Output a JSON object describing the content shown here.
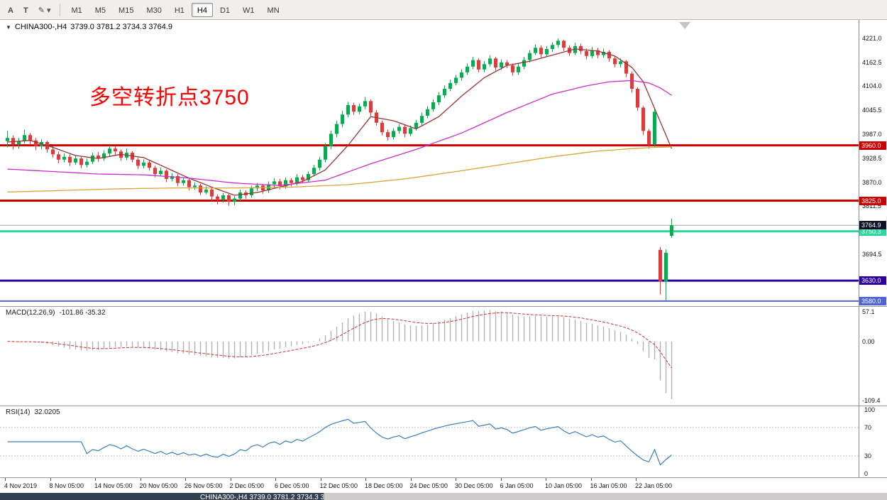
{
  "toolbar": {
    "tools": [
      {
        "name": "text-annotation-button",
        "label": "A"
      },
      {
        "name": "text-label-button",
        "label": "T"
      },
      {
        "name": "drawing-tools-button",
        "label": "✎",
        "caret": true
      }
    ],
    "timeframes": [
      {
        "label": "M1"
      },
      {
        "label": "M5"
      },
      {
        "label": "M15"
      },
      {
        "label": "M30"
      },
      {
        "label": "H1"
      },
      {
        "label": "H4",
        "active": true
      },
      {
        "label": "D1"
      },
      {
        "label": "W1"
      },
      {
        "label": "MN"
      }
    ]
  },
  "annotation": {
    "text": "多空转折点3750",
    "color": "#ff0000"
  },
  "bottom_bar": {
    "left_text": "CHINA300-,H4 3739.0 3781.2 3734.3 3764.9"
  },
  "chart_data": {
    "type": "candlestick",
    "symbol_text": "CHINA300-,H4",
    "ohlc_text": "3739.0 3781.2 3734.3 3764.9",
    "last_ohlc": {
      "open": 3739.0,
      "high": 3781.2,
      "low": 3734.3,
      "close": 3764.9
    },
    "colors": {
      "up": "#00b050",
      "down": "#e03a3a",
      "ma_fast": "#9a3333",
      "ma_mid": "#cc2ecc",
      "ma_slow": "#dba53a",
      "macd_bar": "#b2b2b2",
      "macd_signal": "#cc3333",
      "rsi_line": "#3c7ebf",
      "current_line": "#a6a6a6"
    },
    "y_axis": {
      "price_max": 4266,
      "price_min": 3566,
      "ticks": [
        4221.0,
        4162.5,
        4104.0,
        4045.5,
        3987.0,
        3928.5,
        3870.0,
        3811.5,
        3694.5
      ]
    },
    "levels": [
      {
        "price": 3960.0,
        "label": "3960.0",
        "color": "#cc0000",
        "width": 3
      },
      {
        "price": 3825.0,
        "label": "3825.0",
        "color": "#cc0000",
        "width": 3
      },
      {
        "price": 3750.3,
        "label": "3750.3",
        "color": "#2ed79b",
        "width": 3
      },
      {
        "price": 3630.0,
        "label": "3630.0",
        "color": "#2d00a0",
        "width": 3
      },
      {
        "price": 3580.0,
        "label": "3580.0",
        "color": "#4f63d2",
        "width": 2
      }
    ],
    "current_price": {
      "value": 3764.9,
      "label": "3764.9",
      "box_color": "#0d1026"
    },
    "x_labels": [
      "4 Nov 2019",
      "8 Nov 05:00",
      "14 Nov 05:00",
      "20 Nov 05:00",
      "26 Nov 05:00",
      "2 Dec 05:00",
      "6 Dec 05:00",
      "12 Dec 05:00",
      "18 Dec 05:00",
      "24 Dec 05:00",
      "30 Dec 05:00",
      "6 Jan 05:00",
      "10 Jan 05:00",
      "16 Jan 05:00",
      "22 Jan 05:00"
    ],
    "candles": [
      [
        3970,
        3995,
        3955,
        3978
      ],
      [
        3978,
        3984,
        3950,
        3962
      ],
      [
        3962,
        3978,
        3952,
        3970
      ],
      [
        3970,
        3998,
        3964,
        3985
      ],
      [
        3985,
        3990,
        3962,
        3972
      ],
      [
        3972,
        3978,
        3948,
        3958
      ],
      [
        3958,
        3975,
        3950,
        3968
      ],
      [
        3968,
        3972,
        3942,
        3950
      ],
      [
        3950,
        3958,
        3930,
        3938
      ],
      [
        3938,
        3945,
        3916,
        3925
      ],
      [
        3925,
        3940,
        3918,
        3932
      ],
      [
        3932,
        3938,
        3910,
        3918
      ],
      [
        3918,
        3936,
        3912,
        3928
      ],
      [
        3928,
        3932,
        3904,
        3912
      ],
      [
        3912,
        3928,
        3906,
        3920
      ],
      [
        3920,
        3942,
        3914,
        3935
      ],
      [
        3935,
        3944,
        3920,
        3928
      ],
      [
        3928,
        3948,
        3922,
        3940
      ],
      [
        3940,
        3960,
        3934,
        3952
      ],
      [
        3952,
        3958,
        3936,
        3945
      ],
      [
        3945,
        3950,
        3922,
        3930
      ],
      [
        3930,
        3952,
        3924,
        3942
      ],
      [
        3942,
        3946,
        3918,
        3925
      ],
      [
        3925,
        3930,
        3902,
        3910
      ],
      [
        3910,
        3926,
        3904,
        3918
      ],
      [
        3918,
        3922,
        3898,
        3905
      ],
      [
        3905,
        3910,
        3882,
        3890
      ],
      [
        3890,
        3906,
        3884,
        3898
      ],
      [
        3898,
        3902,
        3870,
        3878
      ],
      [
        3878,
        3892,
        3872,
        3885
      ],
      [
        3885,
        3890,
        3860,
        3868
      ],
      [
        3868,
        3882,
        3862,
        3875
      ],
      [
        3875,
        3880,
        3850,
        3858
      ],
      [
        3858,
        3870,
        3852,
        3862
      ],
      [
        3862,
        3866,
        3838,
        3845
      ],
      [
        3845,
        3860,
        3840,
        3852
      ],
      [
        3852,
        3856,
        3826,
        3835
      ],
      [
        3835,
        3840,
        3816,
        3828
      ],
      [
        3828,
        3844,
        3820,
        3838
      ],
      [
        3838,
        3842,
        3812,
        3822
      ],
      [
        3822,
        3836,
        3814,
        3830
      ],
      [
        3830,
        3852,
        3824,
        3845
      ],
      [
        3845,
        3850,
        3830,
        3838
      ],
      [
        3838,
        3862,
        3832,
        3855
      ],
      [
        3855,
        3868,
        3848,
        3862
      ],
      [
        3862,
        3866,
        3842,
        3850
      ],
      [
        3850,
        3872,
        3844,
        3865
      ],
      [
        3865,
        3880,
        3858,
        3872
      ],
      [
        3872,
        3878,
        3852,
        3860
      ],
      [
        3860,
        3882,
        3854,
        3875
      ],
      [
        3875,
        3880,
        3860,
        3868
      ],
      [
        3868,
        3890,
        3862,
        3882
      ],
      [
        3882,
        3888,
        3868,
        3875
      ],
      [
        3875,
        3896,
        3870,
        3890
      ],
      [
        3890,
        3912,
        3884,
        3905
      ],
      [
        3905,
        3932,
        3898,
        3925
      ],
      [
        3925,
        3965,
        3918,
        3958
      ],
      [
        3958,
        3996,
        3950,
        3988
      ],
      [
        3988,
        4020,
        3980,
        4012
      ],
      [
        4012,
        4044,
        4004,
        4035
      ],
      [
        4035,
        4066,
        4028,
        4058
      ],
      [
        4058,
        4064,
        4034,
        4042
      ],
      [
        4042,
        4062,
        4036,
        4055
      ],
      [
        4055,
        4078,
        4048,
        4068
      ],
      [
        4068,
        4072,
        4032,
        4040
      ],
      [
        4040,
        4046,
        4008,
        4015
      ],
      [
        4015,
        4020,
        3984,
        3992
      ],
      [
        3992,
        3998,
        3972,
        3980
      ],
      [
        3980,
        4002,
        3974,
        3995
      ],
      [
        3995,
        4012,
        3988,
        4005
      ],
      [
        4005,
        4010,
        3980,
        3988
      ],
      [
        3988,
        4008,
        3982,
        4002
      ],
      [
        4002,
        4022,
        3996,
        4015
      ],
      [
        4015,
        4040,
        4008,
        4032
      ],
      [
        4032,
        4056,
        4026,
        4048
      ],
      [
        4048,
        4072,
        4042,
        4065
      ],
      [
        4065,
        4090,
        4058,
        4082
      ],
      [
        4082,
        4106,
        4076,
        4098
      ],
      [
        4098,
        4120,
        4092,
        4112
      ],
      [
        4112,
        4132,
        4106,
        4125
      ],
      [
        4125,
        4146,
        4118,
        4138
      ],
      [
        4138,
        4160,
        4132,
        4152
      ],
      [
        4152,
        4176,
        4146,
        4168
      ],
      [
        4168,
        4172,
        4138,
        4145
      ],
      [
        4145,
        4166,
        4138,
        4158
      ],
      [
        4158,
        4180,
        4152,
        4172
      ],
      [
        4172,
        4176,
        4142,
        4150
      ],
      [
        4150,
        4170,
        4144,
        4162
      ],
      [
        4162,
        4168,
        4148,
        4155
      ],
      [
        4155,
        4160,
        4130,
        4138
      ],
      [
        4138,
        4160,
        4132,
        4152
      ],
      [
        4152,
        4176,
        4146,
        4168
      ],
      [
        4168,
        4192,
        4162,
        4185
      ],
      [
        4185,
        4206,
        4180,
        4198
      ],
      [
        4198,
        4204,
        4174,
        4182
      ],
      [
        4182,
        4202,
        4176,
        4195
      ],
      [
        4195,
        4212,
        4188,
        4205
      ],
      [
        4205,
        4221,
        4198,
        4215
      ],
      [
        4215,
        4218,
        4190,
        4198
      ],
      [
        4198,
        4204,
        4178,
        4185
      ],
      [
        4185,
        4210,
        4180,
        4202
      ],
      [
        4202,
        4208,
        4182,
        4190
      ],
      [
        4190,
        4196,
        4170,
        4178
      ],
      [
        4178,
        4200,
        4172,
        4192
      ],
      [
        4192,
        4198,
        4172,
        4180
      ],
      [
        4180,
        4196,
        4174,
        4188
      ],
      [
        4188,
        4192,
        4164,
        4172
      ],
      [
        4172,
        4178,
        4150,
        4158
      ],
      [
        4158,
        4172,
        4150,
        4165
      ],
      [
        4165,
        4168,
        4126,
        4135
      ],
      [
        4135,
        4140,
        4088,
        4098
      ],
      [
        4098,
        4102,
        4044,
        4052
      ],
      [
        4052,
        4056,
        3985,
        3995
      ],
      [
        3995,
        4000,
        3952,
        3962
      ],
      [
        3962,
        4050,
        3956,
        4042
      ],
      [
        3705,
        3712,
        3596,
        3628
      ],
      [
        3628,
        3706,
        3580,
        3698
      ],
      [
        3739,
        3781.2,
        3734.3,
        3764.9
      ]
    ],
    "moving_averages": [
      {
        "name": "ma-fast",
        "color": "#9a3333",
        "points": [
          [
            0,
            3968
          ],
          [
            4,
            3972
          ],
          [
            8,
            3955
          ],
          [
            12,
            3935
          ],
          [
            16,
            3928
          ],
          [
            20,
            3938
          ],
          [
            24,
            3930
          ],
          [
            28,
            3905
          ],
          [
            32,
            3880
          ],
          [
            36,
            3858
          ],
          [
            40,
            3838
          ],
          [
            44,
            3845
          ],
          [
            48,
            3858
          ],
          [
            52,
            3872
          ],
          [
            56,
            3900
          ],
          [
            60,
            3960
          ],
          [
            64,
            4030
          ],
          [
            68,
            4020
          ],
          [
            72,
            4000
          ],
          [
            76,
            4030
          ],
          [
            80,
            4080
          ],
          [
            84,
            4125
          ],
          [
            88,
            4155
          ],
          [
            92,
            4165
          ],
          [
            96,
            4180
          ],
          [
            100,
            4195
          ],
          [
            104,
            4190
          ],
          [
            107,
            4178
          ],
          [
            110,
            4150
          ],
          [
            112,
            4115
          ],
          [
            114,
            4050
          ],
          [
            116,
            3985
          ],
          [
            117,
            3952
          ]
        ]
      },
      {
        "name": "ma-mid",
        "color": "#cc2ecc",
        "points": [
          [
            0,
            3902
          ],
          [
            8,
            3896
          ],
          [
            16,
            3890
          ],
          [
            24,
            3888
          ],
          [
            32,
            3880
          ],
          [
            40,
            3868
          ],
          [
            48,
            3862
          ],
          [
            56,
            3875
          ],
          [
            64,
            3915
          ],
          [
            72,
            3950
          ],
          [
            80,
            3990
          ],
          [
            88,
            4040
          ],
          [
            96,
            4085
          ],
          [
            102,
            4105
          ],
          [
            106,
            4115
          ],
          [
            110,
            4118
          ],
          [
            113,
            4112
          ],
          [
            115,
            4100
          ],
          [
            117,
            4082
          ]
        ]
      },
      {
        "name": "ma-slow",
        "color": "#dba53a",
        "points": [
          [
            0,
            3846
          ],
          [
            10,
            3850
          ],
          [
            20,
            3854
          ],
          [
            30,
            3856
          ],
          [
            40,
            3856
          ],
          [
            50,
            3858
          ],
          [
            60,
            3864
          ],
          [
            70,
            3878
          ],
          [
            80,
            3898
          ],
          [
            88,
            3915
          ],
          [
            96,
            3932
          ],
          [
            104,
            3946
          ],
          [
            110,
            3952
          ],
          [
            114,
            3955
          ],
          [
            117,
            3956
          ]
        ]
      }
    ],
    "macd": {
      "label": "MACD(12,26,9)",
      "values": "-101.86 -35.32",
      "params": {
        "fast": 12,
        "slow": 26,
        "signal": 9
      },
      "axis_max": "57.1",
      "axis_zero": "0.00",
      "axis_min": "-109.4"
    },
    "rsi": {
      "label": "RSI(14)",
      "value": "32.0205",
      "period": 14,
      "levels": [
        70,
        30
      ],
      "axis": [
        100,
        70,
        30,
        0
      ]
    }
  }
}
